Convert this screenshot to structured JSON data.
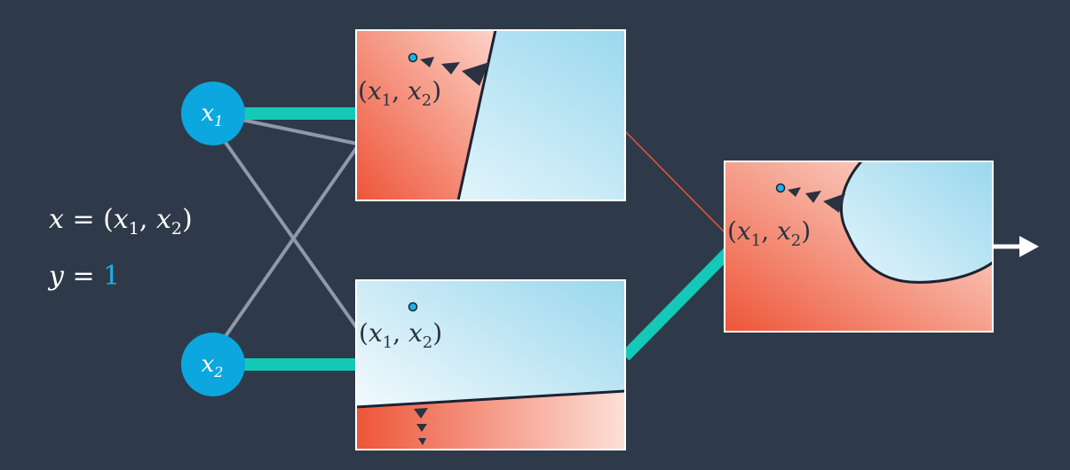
{
  "colors": {
    "background": "#2e3a4a",
    "node": "#0ba7de",
    "teal": "#14c9b6",
    "gray": "#8e9aab",
    "red_region": "#ee5538",
    "blue_region": "#a8def0",
    "dot": "#1ab3e6"
  },
  "inputs": {
    "x1": {
      "name": "x",
      "sub": "1"
    },
    "x2": {
      "name": "x",
      "sub": "2"
    }
  },
  "sample": {
    "x_lhs": "x",
    "x_eq": " = (",
    "x_a": "x",
    "x_a_sub": "1",
    "x_sep": ", ",
    "x_b": "x",
    "x_b_sub": "2",
    "x_close": ")",
    "y_lhs": "y",
    "y_eq": " = ",
    "y_value": "1"
  },
  "panels": {
    "top": {
      "point": {
        "open": "(",
        "a": "x",
        "a_sub": "1",
        "sep": ", ",
        "b": "x",
        "b_sub": "2",
        "close": ")"
      }
    },
    "bottom": {
      "point": {
        "open": "(",
        "a": "x",
        "a_sub": "1",
        "sep": ", ",
        "b": "x",
        "b_sub": "2",
        "close": ")"
      }
    },
    "output": {
      "point": {
        "open": "(",
        "a": "x",
        "a_sub": "1",
        "sep": ", ",
        "b": "x",
        "b_sub": "2",
        "close": ")"
      }
    }
  }
}
